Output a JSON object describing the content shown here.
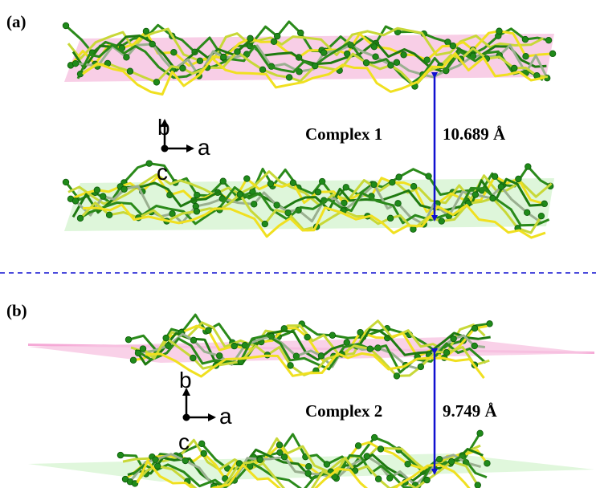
{
  "panels": [
    {
      "label": "(a)",
      "axes": {
        "b": "b",
        "a": "a",
        "c": "c"
      },
      "complex": "Complex 1",
      "distance": "10.689 Å"
    },
    {
      "label": "(b)",
      "axes": {
        "b": "b",
        "a": "a",
        "c": "c"
      },
      "complex": "Complex 2",
      "distance": "9.749 Å"
    }
  ]
}
